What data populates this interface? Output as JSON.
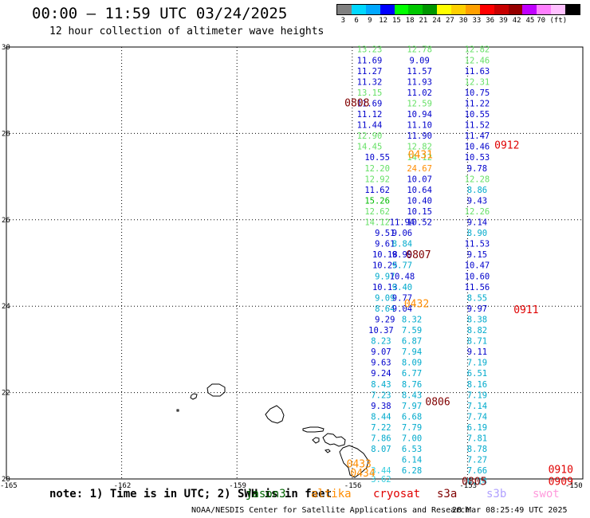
{
  "title": "00:00 — 11:59 UTC 03/24/2025",
  "subtitle": "12 hour collection of altimeter wave heights",
  "colorbar": {
    "colors": [
      "#808080",
      "#00d8ff",
      "#00a8ff",
      "#0000ff",
      "#00ff00",
      "#00c800",
      "#009600",
      "#ffff00",
      "#ffd000",
      "#ffa000",
      "#ff0000",
      "#c80000",
      "#960000",
      "#c000ff",
      "#ff80ff",
      "#ffc0ff",
      "#000000"
    ],
    "labels": [
      "3",
      "6",
      "9",
      "12",
      "15",
      "18",
      "21",
      "24",
      "27",
      "30",
      "33",
      "36",
      "39",
      "42",
      "45",
      "70 (ft)",
      ""
    ]
  },
  "map": {
    "lat_ticks": [
      "30",
      "28",
      "26",
      "24",
      "22",
      "20"
    ],
    "lon_ticks": [
      "-165",
      "-162",
      "-159",
      "-156",
      "-153",
      "-150"
    ],
    "lon_min": -165,
    "lon_max": -150,
    "lat_min": 20,
    "lat_max": 30,
    "track_colors": {
      "light_green": "#66e066",
      "green": "#00bb00",
      "blue": "#0000cc",
      "cyan": "#00aacc",
      "light_cyan": "#33ccdd",
      "orange": "#ff8c00"
    },
    "tracks": [
      {
        "lon": -155.55,
        "points": [
          [
            "13.23",
            "light_green",
            29.95
          ],
          [
            "11.69",
            "blue",
            29.7
          ],
          [
            "11.27",
            "blue",
            29.45
          ],
          [
            "11.32",
            "blue",
            29.2
          ],
          [
            "13.15",
            "light_green",
            28.95
          ],
          [
            "11.69",
            "blue",
            28.7
          ],
          [
            "11.12",
            "blue",
            28.45
          ],
          [
            "11.44",
            "blue",
            28.2
          ],
          [
            "12.90",
            "light_green",
            27.95
          ],
          [
            "14.45",
            "light_green",
            27.7
          ]
        ]
      },
      {
        "lon": -155.35,
        "points": [
          [
            "10.55",
            "blue",
            27.45
          ],
          [
            "12.20",
            "light_green",
            27.2
          ],
          [
            "12.92",
            "light_green",
            26.95
          ],
          [
            "11.62",
            "blue",
            26.7
          ],
          [
            "15.26",
            "green",
            26.45
          ],
          [
            "12.62",
            "light_green",
            26.2
          ],
          [
            "14.12",
            "light_green",
            25.95
          ]
        ]
      },
      {
        "lon": -155.15,
        "points": [
          [
            "9.51",
            "blue",
            25.7
          ],
          [
            "9.61",
            "blue",
            25.45
          ],
          [
            "10.18",
            "blue",
            25.2
          ],
          [
            "10.25",
            "blue",
            24.95
          ],
          [
            "9.97",
            "cyan",
            24.7
          ],
          [
            "10.13",
            "blue",
            24.45
          ],
          [
            "9.09",
            "cyan",
            24.2
          ],
          [
            "8.64",
            "cyan",
            23.95
          ],
          [
            "9.29",
            "blue",
            23.7
          ]
        ]
      },
      {
        "lon": -155.25,
        "points": [
          [
            "10.37",
            "blue",
            23.45
          ],
          [
            "8.23",
            "cyan",
            23.2
          ],
          [
            "9.07",
            "blue",
            22.95
          ],
          [
            "9.63",
            "blue",
            22.7
          ],
          [
            "9.24",
            "blue",
            22.45
          ],
          [
            "8.43",
            "cyan",
            22.2
          ],
          [
            "7.23",
            "cyan",
            21.95
          ],
          [
            "9.38",
            "blue",
            21.7
          ],
          [
            "8.44",
            "cyan",
            21.45
          ],
          [
            "7.22",
            "cyan",
            21.2
          ],
          [
            "7.86",
            "cyan",
            20.95
          ],
          [
            "8.07",
            "cyan",
            20.7
          ],
          [
            "3.44",
            "light_cyan",
            20.2
          ],
          [
            "3.62",
            "light_cyan",
            20.0
          ]
        ]
      },
      {
        "lon": -154.7,
        "points": [
          [
            "11.94",
            "blue",
            25.95
          ],
          [
            "9.06",
            "blue",
            25.7
          ],
          [
            "8.84",
            "cyan",
            25.45
          ],
          [
            "9.99",
            "blue",
            25.2
          ],
          [
            "9.77",
            "cyan",
            24.95
          ],
          [
            "10.48",
            "blue",
            24.7
          ],
          [
            "9.40",
            "cyan",
            24.45
          ],
          [
            "9.77",
            "blue",
            24.2
          ],
          [
            "9.04",
            "blue",
            23.95
          ]
        ]
      },
      {
        "lon": -154.45,
        "points": [
          [
            "8.32",
            "cyan",
            23.7
          ],
          [
            "7.59",
            "cyan",
            23.45
          ],
          [
            "6.87",
            "cyan",
            23.2
          ],
          [
            "7.94",
            "cyan",
            22.95
          ],
          [
            "8.09",
            "cyan",
            22.7
          ],
          [
            "6.77",
            "cyan",
            22.45
          ],
          [
            "8.76",
            "cyan",
            22.2
          ],
          [
            "8.43",
            "cyan",
            21.95
          ],
          [
            "7.97",
            "cyan",
            21.7
          ],
          [
            "6.68",
            "cyan",
            21.45
          ],
          [
            "7.79",
            "cyan",
            21.2
          ],
          [
            "7.00",
            "cyan",
            20.95
          ],
          [
            "6.53",
            "cyan",
            20.7
          ],
          [
            "6.14",
            "cyan",
            20.45
          ],
          [
            "6.28",
            "cyan",
            20.2
          ]
        ]
      },
      {
        "lon": -154.25,
        "points": [
          [
            "12.78",
            "light_green",
            29.95
          ],
          [
            "9.09",
            "blue",
            29.7
          ],
          [
            "11.57",
            "blue",
            29.45
          ],
          [
            "11.93",
            "blue",
            29.2
          ],
          [
            "11.02",
            "blue",
            28.95
          ],
          [
            "12.59",
            "light_green",
            28.7
          ],
          [
            "10.94",
            "blue",
            28.45
          ],
          [
            "11.10",
            "blue",
            28.2
          ],
          [
            "11.90",
            "blue",
            27.95
          ],
          [
            "12.82",
            "light_green",
            27.7
          ],
          [
            "14.12",
            "light_green",
            27.45
          ],
          [
            "24.67",
            "orange",
            27.2
          ],
          [
            "10.07",
            "blue",
            26.95
          ],
          [
            "10.64",
            "blue",
            26.7
          ],
          [
            "10.40",
            "blue",
            26.45
          ],
          [
            "10.15",
            "blue",
            26.2
          ],
          [
            "10.52",
            "blue",
            25.95
          ]
        ]
      },
      {
        "lon": -152.75,
        "points": [
          [
            "12.82",
            "light_green",
            29.95
          ],
          [
            "12.46",
            "light_green",
            29.7
          ],
          [
            "11.63",
            "blue",
            29.45
          ],
          [
            "12.31",
            "light_green",
            29.2
          ],
          [
            "10.75",
            "blue",
            28.95
          ],
          [
            "11.22",
            "blue",
            28.7
          ],
          [
            "10.55",
            "blue",
            28.45
          ],
          [
            "11.52",
            "blue",
            28.2
          ],
          [
            "11.47",
            "blue",
            27.95
          ],
          [
            "10.46",
            "blue",
            27.7
          ],
          [
            "10.53",
            "blue",
            27.45
          ],
          [
            "9.78",
            "blue",
            27.2
          ],
          [
            "12.28",
            "light_green",
            26.95
          ],
          [
            "8.86",
            "cyan",
            26.7
          ],
          [
            "9.43",
            "blue",
            26.45
          ],
          [
            "12.26",
            "light_green",
            26.2
          ],
          [
            "9.14",
            "blue",
            25.95
          ],
          [
            "8.90",
            "cyan",
            25.7
          ]
        ]
      },
      {
        "lon": -152.75,
        "points": [
          [
            "11.53",
            "blue",
            25.45
          ],
          [
            "9.15",
            "blue",
            25.2
          ],
          [
            "10.47",
            "blue",
            24.95
          ],
          [
            "10.60",
            "blue",
            24.7
          ],
          [
            "11.56",
            "blue",
            24.45
          ],
          [
            "8.55",
            "cyan",
            24.2
          ],
          [
            "9.97",
            "blue",
            23.95
          ],
          [
            "8.38",
            "cyan",
            23.7
          ],
          [
            "8.82",
            "cyan",
            23.45
          ],
          [
            "8.71",
            "cyan",
            23.2
          ],
          [
            "9.11",
            "blue",
            22.95
          ],
          [
            "7.19",
            "cyan",
            22.7
          ],
          [
            "6.51",
            "cyan",
            22.45
          ],
          [
            "8.16",
            "cyan",
            22.2
          ],
          [
            "7.19",
            "cyan",
            21.95
          ],
          [
            "7.14",
            "cyan",
            21.7
          ],
          [
            "7.74",
            "cyan",
            21.45
          ],
          [
            "6.19",
            "cyan",
            21.2
          ],
          [
            "7.81",
            "cyan",
            20.95
          ],
          [
            "8.78",
            "cyan",
            20.7
          ],
          [
            "7.27",
            "cyan",
            20.45
          ],
          [
            "7.66",
            "cyan",
            20.2
          ],
          [
            "6.14",
            "cyan",
            19.95
          ]
        ]
      }
    ],
    "labels": [
      {
        "text": "0808",
        "color": "#800000",
        "lon": -156.2,
        "lat": 28.72
      },
      {
        "text": "0431",
        "color": "#ff8c00",
        "lon": -154.55,
        "lat": 27.52
      },
      {
        "text": "0912",
        "color": "#e00000",
        "lon": -152.3,
        "lat": 27.74
      },
      {
        "text": "0807",
        "color": "#800000",
        "lon": -154.6,
        "lat": 25.2
      },
      {
        "text": "0432",
        "color": "#ff8c00",
        "lon": -154.65,
        "lat": 24.07
      },
      {
        "text": "0911",
        "color": "#e00000",
        "lon": -151.8,
        "lat": 23.93
      },
      {
        "text": "0806",
        "color": "#800000",
        "lon": -154.1,
        "lat": 21.8
      },
      {
        "text": "0433",
        "color": "#ff8c00",
        "lon": -156.15,
        "lat": 20.36
      },
      {
        "text": "0434",
        "color": "#ff8c00",
        "lon": -156.05,
        "lat": 20.15
      },
      {
        "text": "0805",
        "color": "#800000",
        "lon": -153.15,
        "lat": 19.95
      },
      {
        "text": "0910",
        "color": "#e00000",
        "lon": -150.9,
        "lat": 20.23
      },
      {
        "text": "0909",
        "color": "#e00000",
        "lon": -150.9,
        "lat": 19.95
      }
    ]
  },
  "footer": {
    "note": "note: 1) Time is in UTC; 2) SWH is in feet",
    "legend": [
      {
        "name": "jason3",
        "color": "#006400"
      },
      {
        "name": "altika",
        "color": "#ff8c00"
      },
      {
        "name": "cryosat",
        "color": "#e00000"
      },
      {
        "name": "s3a",
        "color": "#800000"
      },
      {
        "name": "s3b",
        "color": "#b0a0ff"
      },
      {
        "name": "swot",
        "color": "#ff9adc"
      }
    ],
    "credit": "NOAA/NESDIS Center for Satellite Applications and Research",
    "timestamp": "28 Mar 08:25:49 UTC 2025"
  }
}
